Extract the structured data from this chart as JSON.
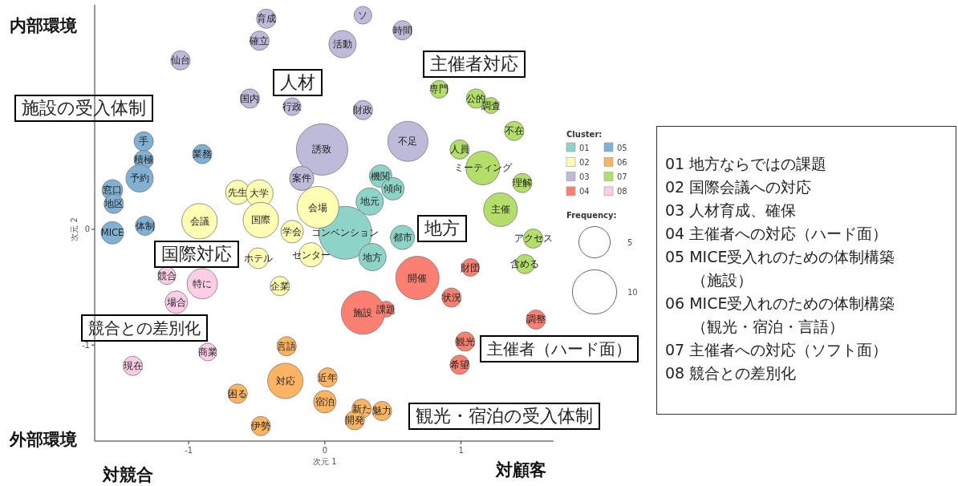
{
  "chart_data": {
    "type": "bubble",
    "xlabel": "次元 1",
    "ylabel": "次元 2",
    "legend_title": "Cluster:",
    "legend": "right",
    "marker": "circle",
    "xlim": [
      -1.69,
      1.68
    ],
    "ylim": [
      -1.83,
      1.94
    ],
    "xticks": [
      -1,
      0,
      1
    ],
    "yticks": [
      -1,
      0
    ],
    "size_legend": [
      5,
      10
    ],
    "series": [
      {
        "name": "01",
        "color": "#8dd3c7",
        "x": [
          0.41,
          0.5,
          0.33,
          0.15,
          0.35,
          0.57
        ],
        "values": [
          0.46,
          0.35,
          0.24,
          -0.03,
          -0.24,
          -0.07
        ],
        "sizes": [
          2.6,
          2.6,
          3.8,
          14.3,
          3.8,
          3.0
        ]
      },
      {
        "name": "02",
        "color": "#ffffb3",
        "x": [
          -0.64,
          -0.48,
          -0.92,
          -0.47,
          -0.24,
          -0.05,
          -0.1,
          -0.49,
          -0.33
        ],
        "values": [
          0.32,
          0.31,
          0.07,
          0.08,
          -0.02,
          0.19,
          -0.22,
          -0.25,
          -0.49
        ],
        "sizes": [
          3.0,
          3.8,
          6.4,
          6.4,
          2.6,
          8.9,
          3.0,
          2.2,
          1.9
        ]
      },
      {
        "name": "03",
        "color": "#bebada",
        "x": [
          0.28,
          -0.43,
          -0.48,
          0.13,
          0.57,
          -1.06,
          -0.55,
          -0.24,
          0.28,
          -0.02,
          0.61,
          -0.17
        ],
        "values": [
          1.85,
          1.82,
          1.63,
          1.6,
          1.72,
          1.46,
          1.13,
          1.06,
          1.03,
          0.69,
          0.76,
          0.44
        ],
        "sizes": [
          1.6,
          1.9,
          1.9,
          3.8,
          1.9,
          1.9,
          1.9,
          1.6,
          1.9,
          13.5,
          8.2,
          3.0
        ]
      },
      {
        "name": "04",
        "color": "#fb8072",
        "x": [
          1.07,
          0.68,
          0.93,
          0.45,
          0.28,
          1.55,
          1.03,
          0.99
        ],
        "values": [
          -0.33,
          -0.42,
          -0.59,
          -0.69,
          -0.72,
          -0.78,
          -0.97,
          -1.17
        ],
        "sizes": [
          1.6,
          9.6,
          1.9,
          1.3,
          9.6,
          1.9,
          1.9,
          1.9
        ]
      },
      {
        "name": "05",
        "color": "#80b1d3",
        "x": [
          -1.33,
          -1.33,
          -1.36,
          -1.56,
          -1.55,
          -0.9,
          -1.56,
          -1.32
        ],
        "values": [
          0.76,
          0.6,
          0.44,
          0.34,
          0.22,
          0.65,
          -0.03,
          0.03
        ],
        "sizes": [
          1.9,
          1.9,
          3.8,
          2.2,
          1.9,
          1.9,
          2.6,
          1.9
        ]
      },
      {
        "name": "06",
        "color": "#fdb462",
        "x": [
          -0.28,
          -0.29,
          0.02,
          -0.64,
          0.0,
          -0.47,
          0.27,
          0.42,
          0.22
        ],
        "values": [
          -1.01,
          -1.31,
          -1.28,
          -1.42,
          -1.49,
          -1.7,
          -1.55,
          -1.57,
          -1.65
        ],
        "sizes": [
          1.9,
          6.4,
          1.9,
          1.9,
          2.6,
          1.9,
          1.9,
          1.9,
          1.9
        ]
      },
      {
        "name": "07",
        "color": "#b3de69",
        "x": [
          0.84,
          1.11,
          1.22,
          1.39,
          0.99,
          1.16,
          1.45,
          1.29,
          1.53,
          1.47
        ],
        "values": [
          1.21,
          1.13,
          1.07,
          0.85,
          0.69,
          0.53,
          0.4,
          0.17,
          -0.08,
          -0.3
        ],
        "sizes": [
          1.6,
          1.9,
          1.3,
          1.9,
          1.9,
          5.8,
          1.9,
          5.8,
          1.9,
          1.9
        ]
      },
      {
        "name": "08",
        "color": "#fccde5",
        "x": [
          -1.16,
          -0.9,
          -1.09,
          -0.86,
          -1.41
        ],
        "values": [
          -0.4,
          -0.47,
          -0.63,
          -1.06,
          -1.18
        ],
        "sizes": [
          1.6,
          4.7,
          2.6,
          1.6,
          1.9
        ]
      }
    ],
    "annotations": [
      "内部環境",
      "外部環境",
      "対競合",
      "対顧客",
      "施設の受入体制",
      "人材",
      "主催者対応",
      "地方",
      "国際対応",
      "競合との差別化",
      "主催者（ハード面）",
      "観光・宿泊の受入体制",
      "Frequency:",
      "01 地方ならではの課題",
      "02 国際会議への対応",
      "03 人材育成、確保",
      "04 主催者への対応（ハード面）",
      "05 MICE受入れのための体制構築（施設）",
      "06 MICE受入れのための体制構築（観光・宿泊・言語）",
      "07 主催者への対応（ソフト面）",
      "08 競合との差別化",
      {
        "text": "機関",
        "x": 0.41,
        "y": 0.46
      },
      {
        "text": "傾向",
        "x": 0.5,
        "y": 0.35
      },
      {
        "text": "地元",
        "x": 0.33,
        "y": 0.24
      },
      {
        "text": "コンベンション",
        "x": 0.15,
        "y": -0.03
      },
      {
        "text": "地方",
        "x": 0.35,
        "y": -0.24
      },
      {
        "text": "都市",
        "x": 0.57,
        "y": -0.07
      },
      {
        "text": "先生",
        "x": -0.64,
        "y": 0.32
      },
      {
        "text": "大学",
        "x": -0.48,
        "y": 0.31
      },
      {
        "text": "会議",
        "x": -0.92,
        "y": 0.07
      },
      {
        "text": "国際",
        "x": -0.47,
        "y": 0.08
      },
      {
        "text": "学会",
        "x": -0.24,
        "y": -0.02
      },
      {
        "text": "会場",
        "x": -0.05,
        "y": 0.19
      },
      {
        "text": "センター",
        "x": -0.1,
        "y": -0.22
      },
      {
        "text": "ホテル",
        "x": -0.49,
        "y": -0.25
      },
      {
        "text": "企業",
        "x": -0.33,
        "y": -0.49
      },
      {
        "text": "ソ",
        "x": 0.28,
        "y": 1.85
      },
      {
        "text": "育成",
        "x": -0.43,
        "y": 1.82
      },
      {
        "text": "確立",
        "x": -0.48,
        "y": 1.63
      },
      {
        "text": "活動",
        "x": 0.13,
        "y": 1.6
      },
      {
        "text": "時間",
        "x": 0.57,
        "y": 1.72
      },
      {
        "text": "仙台",
        "x": -1.06,
        "y": 1.46
      },
      {
        "text": "国内",
        "x": -0.55,
        "y": 1.13
      },
      {
        "text": "行政",
        "x": -0.24,
        "y": 1.06
      },
      {
        "text": "財政",
        "x": 0.28,
        "y": 1.03
      },
      {
        "text": "誘致",
        "x": -0.02,
        "y": 0.69
      },
      {
        "text": "不足",
        "x": 0.61,
        "y": 0.76
      },
      {
        "text": "案件",
        "x": -0.17,
        "y": 0.44
      },
      {
        "text": "財団",
        "x": 1.07,
        "y": -0.33
      },
      {
        "text": "開催",
        "x": 0.68,
        "y": -0.42
      },
      {
        "text": "状況",
        "x": 0.93,
        "y": -0.59
      },
      {
        "text": "課題",
        "x": 0.45,
        "y": -0.69
      },
      {
        "text": "施設",
        "x": 0.28,
        "y": -0.72
      },
      {
        "text": "調整",
        "x": 1.55,
        "y": -0.78
      },
      {
        "text": "観光",
        "x": 1.03,
        "y": -0.97
      },
      {
        "text": "希望",
        "x": 0.99,
        "y": -1.17
      },
      {
        "text": "手",
        "x": -1.33,
        "y": 0.76
      },
      {
        "text": "積極",
        "x": -1.33,
        "y": 0.6
      },
      {
        "text": "予約",
        "x": -1.36,
        "y": 0.44
      },
      {
        "text": "窓口",
        "x": -1.56,
        "y": 0.34
      },
      {
        "text": "地区",
        "x": -1.55,
        "y": 0.22
      },
      {
        "text": "業務",
        "x": -0.9,
        "y": 0.65
      },
      {
        "text": "MICE",
        "x": -1.56,
        "y": -0.03
      },
      {
        "text": "体制",
        "x": -1.32,
        "y": 0.03
      },
      {
        "text": "言語",
        "x": -0.28,
        "y": -1.01
      },
      {
        "text": "対応",
        "x": -0.29,
        "y": -1.31
      },
      {
        "text": "近年",
        "x": 0.02,
        "y": -1.28
      },
      {
        "text": "困る",
        "x": -0.64,
        "y": -1.42
      },
      {
        "text": "宿泊",
        "x": 0.0,
        "y": -1.49
      },
      {
        "text": "伊勢",
        "x": -0.47,
        "y": -1.7
      },
      {
        "text": "新た",
        "x": 0.27,
        "y": -1.55
      },
      {
        "text": "魅力",
        "x": 0.42,
        "y": -1.57
      },
      {
        "text": "開発",
        "x": 0.22,
        "y": -1.65
      },
      {
        "text": "専門",
        "x": 0.84,
        "y": 1.21
      },
      {
        "text": "公的",
        "x": 1.11,
        "y": 1.13
      },
      {
        "text": "調査",
        "x": 1.22,
        "y": 1.07
      },
      {
        "text": "不在",
        "x": 1.39,
        "y": 0.85
      },
      {
        "text": "人員",
        "x": 0.99,
        "y": 0.69
      },
      {
        "text": "ミーティング",
        "x": 1.16,
        "y": 0.53
      },
      {
        "text": "理解",
        "x": 1.45,
        "y": 0.4
      },
      {
        "text": "主催",
        "x": 1.29,
        "y": 0.17
      },
      {
        "text": "アクセス",
        "x": 1.53,
        "y": -0.08
      },
      {
        "text": "含める",
        "x": 1.47,
        "y": -0.3
      },
      {
        "text": "競合",
        "x": -1.16,
        "y": -0.4
      },
      {
        "text": "特に",
        "x": -0.9,
        "y": -0.47
      },
      {
        "text": "場合",
        "x": -1.09,
        "y": -0.63
      },
      {
        "text": "商業",
        "x": -0.86,
        "y": -1.06
      },
      {
        "text": "現在",
        "x": -1.41,
        "y": -1.18
      }
    ]
  }
}
